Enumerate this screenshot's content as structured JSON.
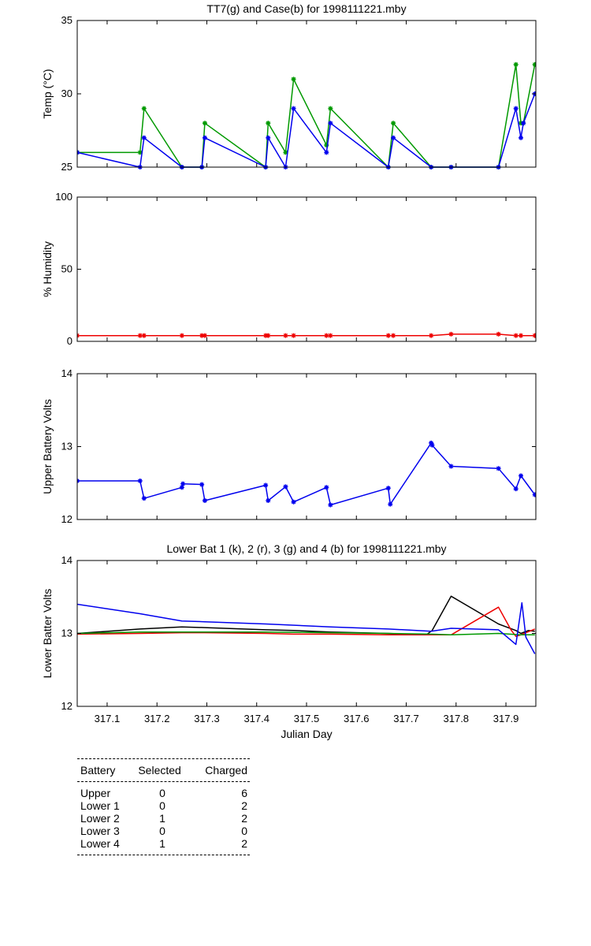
{
  "chart_data": [
    {
      "type": "line",
      "title": "TT7(g) and Case(b) for 1998111221.mby",
      "xlabel": "",
      "ylabel": "Temp  (°C)",
      "xlim": [
        317.04,
        317.96
      ],
      "ylim": [
        25,
        35
      ],
      "yticks": [
        25,
        30,
        35
      ],
      "grid": false,
      "series": [
        {
          "color": "#009900",
          "markers": true,
          "x": [
            317.04,
            317.166,
            317.174,
            317.25,
            317.29,
            317.296,
            317.418,
            317.423,
            317.458,
            317.474,
            317.54,
            317.548,
            317.664,
            317.674,
            317.75,
            317.79,
            317.885,
            317.92,
            317.93,
            317.935,
            317.958
          ],
          "y": [
            26,
            26,
            29,
            25,
            25,
            28,
            25,
            28,
            26,
            31,
            26.5,
            29,
            25,
            28,
            25,
            25,
            25,
            32,
            28,
            28,
            32
          ]
        },
        {
          "color": "#0000ee",
          "markers": true,
          "x": [
            317.04,
            317.166,
            317.174,
            317.25,
            317.29,
            317.296,
            317.418,
            317.423,
            317.458,
            317.474,
            317.54,
            317.548,
            317.664,
            317.674,
            317.75,
            317.79,
            317.885,
            317.92,
            317.93,
            317.935,
            317.958
          ],
          "y": [
            26,
            25,
            27,
            25,
            25,
            27,
            25,
            27,
            25,
            29,
            26,
            28,
            25,
            27,
            25,
            25,
            25,
            29,
            27,
            28,
            30
          ]
        }
      ]
    },
    {
      "type": "line",
      "title": "",
      "xlabel": "",
      "ylabel": "% Humidity",
      "xlim": [
        317.04,
        317.96
      ],
      "ylim": [
        0,
        100
      ],
      "yticks": [
        0,
        50,
        100
      ],
      "grid": false,
      "series": [
        {
          "color": "#ee0000",
          "markers": true,
          "x": [
            317.04,
            317.166,
            317.174,
            317.25,
            317.29,
            317.296,
            317.418,
            317.423,
            317.458,
            317.474,
            317.54,
            317.548,
            317.664,
            317.674,
            317.75,
            317.79,
            317.885,
            317.92,
            317.93,
            317.958
          ],
          "y": [
            4,
            4,
            4,
            4,
            4,
            4,
            4,
            4,
            4,
            4,
            4,
            4,
            4,
            4,
            4,
            5,
            5,
            4,
            4,
            4
          ]
        }
      ]
    },
    {
      "type": "line",
      "title": "",
      "xlabel": "",
      "ylabel": "Upper Battery Volts",
      "xlim": [
        317.04,
        317.96
      ],
      "ylim": [
        12,
        14
      ],
      "yticks": [
        12,
        13,
        14
      ],
      "grid": false,
      "series": [
        {
          "color": "#0000ee",
          "markers": true,
          "x": [
            317.04,
            317.166,
            317.174,
            317.25,
            317.252,
            317.29,
            317.296,
            317.418,
            317.423,
            317.458,
            317.474,
            317.54,
            317.548,
            317.664,
            317.668,
            317.75,
            317.752,
            317.79,
            317.885,
            317.92,
            317.93,
            317.958
          ],
          "y": [
            12.53,
            12.53,
            12.29,
            12.44,
            12.49,
            12.48,
            12.26,
            12.47,
            12.26,
            12.45,
            12.24,
            12.44,
            12.2,
            12.43,
            12.21,
            13.05,
            13.02,
            12.73,
            12.7,
            12.42,
            12.6,
            12.34
          ]
        }
      ]
    },
    {
      "type": "line",
      "title": "Lower Bat 1 (k), 2 (r), 3 (g) and 4 (b) for 1998111221.mby",
      "xlabel": "Julian Day",
      "ylabel": "Lower Batter Volts",
      "xlim": [
        317.04,
        317.96
      ],
      "ylim": [
        12,
        14
      ],
      "yticks": [
        12,
        13,
        14
      ],
      "xticks": [
        317.1,
        317.2,
        317.3,
        317.4,
        317.5,
        317.6,
        317.7,
        317.8,
        317.9
      ],
      "xticklabels": [
        "317.1",
        "317.2",
        "317.3",
        "317.4",
        "317.5",
        "317.6",
        "317.7",
        "317.8",
        "317.9"
      ],
      "grid": false,
      "series": [
        {
          "color": "#000000",
          "markers": false,
          "x": [
            317.04,
            317.166,
            317.25,
            317.296,
            317.418,
            317.474,
            317.548,
            317.664,
            317.74,
            317.752,
            317.79,
            317.885,
            317.92,
            317.93,
            317.945,
            317.958
          ],
          "y": [
            13.0,
            13.06,
            13.09,
            13.08,
            13.05,
            13.04,
            13.02,
            13.0,
            12.98,
            13.04,
            13.51,
            13.13,
            13.04,
            13.0,
            13.04,
            13.03
          ]
        },
        {
          "color": "#ee0000",
          "markers": false,
          "x": [
            317.04,
            317.166,
            317.25,
            317.296,
            317.418,
            317.474,
            317.548,
            317.664,
            317.74,
            317.79,
            317.885,
            317.91,
            317.92,
            317.93,
            317.958
          ],
          "y": [
            12.99,
            13.0,
            13.01,
            13.01,
            13.0,
            12.99,
            12.99,
            12.98,
            12.98,
            12.98,
            13.36,
            13.05,
            12.96,
            12.98,
            13.06
          ]
        },
        {
          "color": "#009900",
          "markers": false,
          "x": [
            317.04,
            317.166,
            317.25,
            317.296,
            317.418,
            317.548,
            317.664,
            317.75,
            317.79,
            317.885,
            317.93,
            317.958
          ],
          "y": [
            13.0,
            13.02,
            13.02,
            13.02,
            13.02,
            13.01,
            13.0,
            12.99,
            12.98,
            13.0,
            12.98,
            12.98
          ]
        },
        {
          "color": "#0000ee",
          "markers": false,
          "x": [
            317.04,
            317.166,
            317.25,
            317.296,
            317.418,
            317.548,
            317.664,
            317.75,
            317.79,
            317.885,
            317.92,
            317.932,
            317.94,
            317.958
          ],
          "y": [
            13.4,
            13.27,
            13.17,
            13.16,
            13.13,
            13.09,
            13.06,
            13.03,
            13.07,
            13.05,
            12.85,
            13.42,
            12.95,
            12.72
          ]
        }
      ]
    }
  ],
  "battery_table": {
    "headers": [
      "Battery",
      "Selected",
      "Charged"
    ],
    "rows": [
      [
        "Upper",
        "0",
        "6"
      ],
      [
        "Lower 1",
        "0",
        "2"
      ],
      [
        "Lower 2",
        "1",
        "2"
      ],
      [
        "Lower 3",
        "0",
        "0"
      ],
      [
        "Lower 4",
        "1",
        "2"
      ]
    ]
  }
}
